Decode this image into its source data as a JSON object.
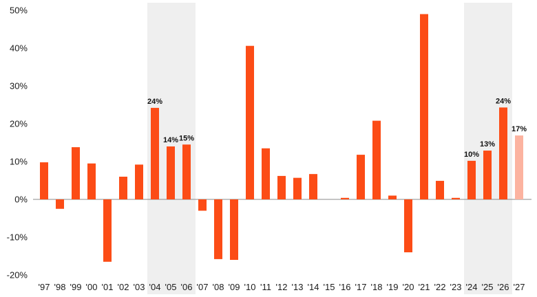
{
  "chart_data": {
    "type": "bar",
    "categories": [
      "'97",
      "'98",
      "'99",
      "'00",
      "'01",
      "'02",
      "'03",
      "'04",
      "'05",
      "'06",
      "'07",
      "'08",
      "'09",
      "'10",
      "'11",
      "'12",
      "'13",
      "'14",
      "'15",
      "'16",
      "'17",
      "'18",
      "'19",
      "'20",
      "'21",
      "'22",
      "'23",
      "'24",
      "'25",
      "'26",
      "'27"
    ],
    "values": [
      9.8,
      -2.5,
      13.8,
      9.5,
      -16.5,
      6.0,
      9.2,
      24.2,
      14.0,
      14.5,
      -3.0,
      -15.8,
      -16.0,
      40.6,
      13.5,
      6.2,
      5.7,
      6.7,
      0.0,
      0.4,
      11.8,
      20.8,
      1.0,
      -14.0,
      49.0,
      4.9,
      0.4,
      10.2,
      12.9,
      24.3,
      16.9
    ],
    "bar_colors": [
      "#fc4c16",
      "#fc4c16",
      "#fc4c16",
      "#fc4c16",
      "#fc4c16",
      "#fc4c16",
      "#fc4c16",
      "#fc4c16",
      "#fc4c16",
      "#fc4c16",
      "#fc4c16",
      "#fc4c16",
      "#fc4c16",
      "#fc4c16",
      "#fc4c16",
      "#fc4c16",
      "#fc4c16",
      "#fc4c16",
      "#fc4c16",
      "#fc4c16",
      "#fc4c16",
      "#fc4c16",
      "#fc4c16",
      "#fc4c16",
      "#fc4c16",
      "#fc4c16",
      "#fc4c16",
      "#fc4c16",
      "#fc4c16",
      "#fc4c16",
      "#fcb3a0"
    ],
    "data_labels": [
      {
        "category": "'04",
        "text": "24%"
      },
      {
        "category": "'05",
        "text": "14%"
      },
      {
        "category": "'06",
        "text": "15%"
      },
      {
        "category": "'24",
        "text": "10%"
      },
      {
        "category": "'25",
        "text": "13%"
      },
      {
        "category": "'26",
        "text": "24%"
      },
      {
        "category": "'27",
        "text": "17%"
      }
    ],
    "shaded_ranges": [
      {
        "from": "'04",
        "to": "'06"
      },
      {
        "from": "'24",
        "to": "'26"
      }
    ],
    "y_ticks": [
      {
        "value": 50,
        "label": "50%"
      },
      {
        "value": 40,
        "label": "40%"
      },
      {
        "value": 30,
        "label": "30%"
      },
      {
        "value": 20,
        "label": "20%"
      },
      {
        "value": 10,
        "label": "10%"
      },
      {
        "value": 0,
        "label": "0%"
      },
      {
        "value": -10,
        "label": "-10%"
      },
      {
        "value": -20,
        "label": "-20%"
      }
    ],
    "ylim": [
      -20,
      50
    ],
    "title": "",
    "xlabel": "",
    "ylabel": "",
    "grid": false,
    "legend": "none",
    "colors": {
      "bar": "#fc4c16",
      "bar_estimate": "#fcb3a0",
      "shade": "#efefef",
      "zero_line": "#888888"
    }
  }
}
